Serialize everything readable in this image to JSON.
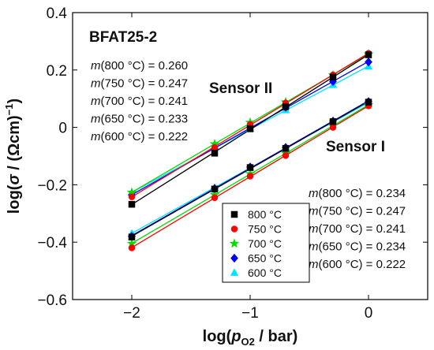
{
  "chart_data": {
    "type": "scatter",
    "title": "BFAT25-2",
    "xlabel": "log(p_O2 / bar)",
    "ylabel": "log(σ / (Ωcm)^-1)",
    "xlim": [
      -2.5,
      0.5
    ],
    "ylim": [
      -0.6,
      0.4
    ],
    "x_ticks": [
      -2,
      -1,
      0
    ],
    "y_ticks": [
      -0.6,
      -0.4,
      -0.2,
      0,
      0.2,
      0.4
    ],
    "x_tick_labels": [
      "−2",
      "−1",
      "0"
    ],
    "y_tick_labels": [
      "−0.6",
      "−0.4",
      "−0.2",
      "0",
      "0.2",
      "0.4"
    ],
    "grid": false,
    "legend_position": "lower-center",
    "series": [
      {
        "name": "800 °C",
        "color": "#000000",
        "marker": "square",
        "sensor": "II",
        "x": [
          -2,
          -1.3,
          -1,
          -0.7,
          -0.3,
          0
        ],
        "y": [
          -0.268,
          -0.09,
          -0.005,
          0.072,
          0.175,
          0.253
        ]
      },
      {
        "name": "750 °C",
        "color": "#ff0000",
        "marker": "circle",
        "sensor": "II",
        "x": [
          -2,
          -1.3,
          -1,
          -0.7,
          -0.3,
          0
        ],
        "y": [
          -0.242,
          -0.07,
          0.01,
          0.085,
          0.183,
          0.258
        ]
      },
      {
        "name": "700 °C",
        "color": "#00dd00",
        "marker": "star",
        "sensor": "II",
        "x": [
          -2,
          -1.3,
          -1,
          -0.7,
          -0.3,
          0
        ],
        "y": [
          -0.227,
          -0.058,
          0.017,
          0.088,
          0.182,
          0.255
        ]
      },
      {
        "name": "650 °C",
        "color": "#0000ff",
        "marker": "diamond",
        "sensor": "II",
        "x": [
          -2,
          -1.3,
          -1,
          -0.7,
          -0.3,
          0
        ],
        "y": [
          -0.235,
          -0.075,
          0.0,
          0.07,
          0.16,
          0.228
        ]
      },
      {
        "name": "600 °C",
        "color": "#00e5ff",
        "marker": "triangle",
        "sensor": "II",
        "x": [
          -2,
          -1.3,
          -1,
          -0.7,
          -0.3,
          0
        ],
        "y": [
          -0.228,
          -0.072,
          -0.005,
          0.06,
          0.148,
          0.212
        ]
      },
      {
        "name": "800 °C",
        "color": "#000000",
        "marker": "square",
        "sensor": "I",
        "x": [
          -2,
          -1.3,
          -1,
          -0.7,
          -0.3,
          0
        ],
        "y": [
          -0.382,
          -0.215,
          -0.14,
          -0.073,
          0.02,
          0.088
        ]
      },
      {
        "name": "750 °C",
        "color": "#ff0000",
        "marker": "circle",
        "sensor": "I",
        "x": [
          -2,
          -1.3,
          -1,
          -0.7,
          -0.3,
          0
        ],
        "y": [
          -0.42,
          -0.245,
          -0.17,
          -0.098,
          0.0,
          0.075
        ]
      },
      {
        "name": "700 °C",
        "color": "#00dd00",
        "marker": "star",
        "sensor": "I",
        "x": [
          -2,
          -1.3,
          -1,
          -0.7,
          -0.3,
          0
        ],
        "y": [
          -0.405,
          -0.235,
          -0.162,
          -0.09,
          0.005,
          0.078
        ]
      },
      {
        "name": "650 °C",
        "color": "#0000ff",
        "marker": "diamond",
        "sensor": "I",
        "x": [
          -2,
          -1.3,
          -1,
          -0.7,
          -0.3,
          0
        ],
        "y": [
          -0.38,
          -0.213,
          -0.138,
          -0.07,
          0.022,
          0.09
        ]
      },
      {
        "name": "600 °C",
        "color": "#00e5ff",
        "marker": "triangle",
        "sensor": "I",
        "x": [
          -2,
          -1.3,
          -1,
          -0.7,
          -0.3,
          0
        ],
        "y": [
          -0.37,
          -0.21,
          -0.14,
          -0.07,
          0.018,
          0.085
        ]
      }
    ],
    "legend": [
      "800 °C",
      "750 °C",
      "700 °C",
      "650 °C",
      "600 °C"
    ],
    "annotations": {
      "sample": "BFAT25-2",
      "sensor_ii_label": "Sensor II",
      "sensor_i_label": "Sensor I",
      "sensor_ii_slopes": [
        {
          "temp": "800 °C",
          "value": "0.260"
        },
        {
          "temp": "750 °C",
          "value": "0.247"
        },
        {
          "temp": "700 °C",
          "value": "0.241"
        },
        {
          "temp": "650 °C",
          "value": "0.233"
        },
        {
          "temp": "600 °C",
          "value": "0.222"
        }
      ],
      "sensor_i_slopes": [
        {
          "temp": "800 °C",
          "value": "0.234"
        },
        {
          "temp": "750 °C",
          "value": "0.247"
        },
        {
          "temp": "700 °C",
          "value": "0.241"
        },
        {
          "temp": "650 °C",
          "value": "0.234"
        },
        {
          "temp": "600 °C",
          "value": "0.222"
        }
      ]
    }
  }
}
